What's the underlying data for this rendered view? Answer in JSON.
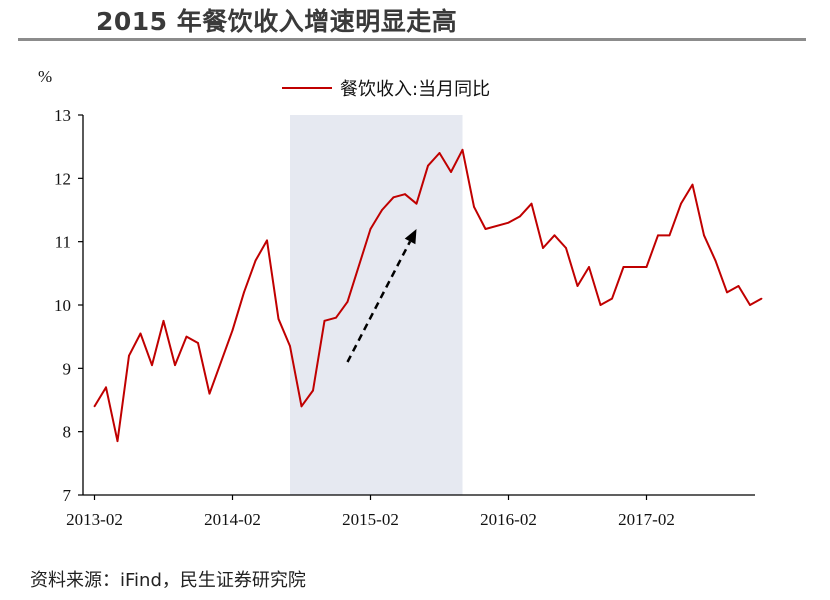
{
  "title": "2015 年餐饮收入增速明显走高",
  "source": "资料来源：iFind，民生证券研究院",
  "colors": {
    "series": "#c00000",
    "shade": "#e6e9f1",
    "axis": "#000000",
    "arrow": "#000000"
  },
  "chart_data": {
    "type": "line",
    "ylabel": "%",
    "ylim": [
      7,
      13
    ],
    "yticks": [
      7,
      8,
      9,
      10,
      11,
      12,
      13
    ],
    "xtick_labels": [
      "2013-02",
      "2014-02",
      "2015-02",
      "2016-02",
      "2017-02"
    ],
    "legend": "top-center",
    "grid": false,
    "shaded_period": {
      "start": "2014-07",
      "end": "2015-10"
    },
    "annotation": {
      "type": "dashed-arrow",
      "from": {
        "x": "2014-12",
        "y": 9.1
      },
      "to": {
        "x": "2015-06",
        "y": 11.2
      }
    },
    "series": [
      {
        "name": "餐饮收入:当月同比",
        "x": [
          "2013-02",
          "2013-03",
          "2013-04",
          "2013-05",
          "2013-06",
          "2013-07",
          "2013-08",
          "2013-09",
          "2013-10",
          "2013-11",
          "2013-12",
          "2014-02",
          "2014-03",
          "2014-04",
          "2014-05",
          "2014-06",
          "2014-07",
          "2014-08",
          "2014-09",
          "2014-10",
          "2014-11",
          "2014-12",
          "2015-02",
          "2015-03",
          "2015-04",
          "2015-05",
          "2015-06",
          "2015-07",
          "2015-08",
          "2015-09",
          "2015-10",
          "2015-11",
          "2015-12",
          "2016-02",
          "2016-03",
          "2016-04",
          "2016-05",
          "2016-06",
          "2016-07",
          "2016-08",
          "2016-09",
          "2016-10",
          "2016-11",
          "2016-12",
          "2017-02",
          "2017-03",
          "2017-04",
          "2017-05",
          "2017-06",
          "2017-07",
          "2017-08",
          "2017-09",
          "2017-10",
          "2017-11",
          "2017-12"
        ],
        "values": [
          8.4,
          8.7,
          7.85,
          9.2,
          9.55,
          9.05,
          9.75,
          9.05,
          9.5,
          9.4,
          8.6,
          9.6,
          10.2,
          10.7,
          11.02,
          9.78,
          9.35,
          8.4,
          8.65,
          9.75,
          9.8,
          10.05,
          11.2,
          11.5,
          11.7,
          11.75,
          11.6,
          12.2,
          12.4,
          12.1,
          12.45,
          11.55,
          11.2,
          11.3,
          11.4,
          11.6,
          10.9,
          11.1,
          10.9,
          10.3,
          10.6,
          10.0,
          10.1,
          10.6,
          10.6,
          11.1,
          11.1,
          11.6,
          11.9,
          11.1,
          10.7,
          10.2,
          10.3,
          10.0,
          10.1
        ]
      }
    ]
  }
}
